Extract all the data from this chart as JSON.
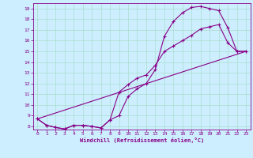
{
  "xlabel": "Windchill (Refroidissement éolien,°C)",
  "background_color": "#cceeff",
  "grid_color": "#aaddcc",
  "line_color": "#880088",
  "xlim": [
    -0.5,
    23.5
  ],
  "ylim": [
    7.7,
    19.5
  ],
  "xticks": [
    0,
    1,
    2,
    3,
    4,
    5,
    6,
    7,
    8,
    9,
    10,
    11,
    12,
    13,
    14,
    15,
    16,
    17,
    18,
    19,
    20,
    21,
    22,
    23
  ],
  "yticks": [
    8,
    9,
    10,
    11,
    12,
    13,
    14,
    15,
    16,
    17,
    18,
    19
  ],
  "line1_x": [
    0,
    1,
    2,
    3,
    4,
    5,
    6,
    7,
    8,
    9,
    10,
    11,
    12,
    13,
    14,
    15,
    16,
    17,
    18,
    19,
    20,
    21,
    22,
    23
  ],
  "line1_y": [
    8.7,
    8.1,
    7.9,
    7.75,
    8.1,
    8.1,
    8.0,
    7.85,
    8.6,
    9.0,
    10.8,
    11.5,
    12.0,
    13.3,
    16.4,
    17.8,
    18.6,
    19.1,
    19.2,
    19.0,
    18.8,
    17.2,
    15.0,
    15.0
  ],
  "line2_x": [
    0,
    1,
    2,
    3,
    4,
    5,
    6,
    7,
    8,
    9,
    10,
    11,
    12,
    13,
    14,
    15,
    16,
    17,
    18,
    19,
    20,
    21,
    22,
    23
  ],
  "line2_y": [
    8.7,
    8.1,
    7.9,
    7.75,
    8.1,
    8.1,
    8.0,
    7.85,
    8.6,
    11.2,
    11.9,
    12.5,
    12.8,
    13.7,
    15.0,
    15.5,
    16.0,
    16.5,
    17.1,
    17.3,
    17.5,
    15.8,
    15.0,
    15.0
  ],
  "line3_x": [
    0,
    23
  ],
  "line3_y": [
    8.7,
    15.0
  ]
}
